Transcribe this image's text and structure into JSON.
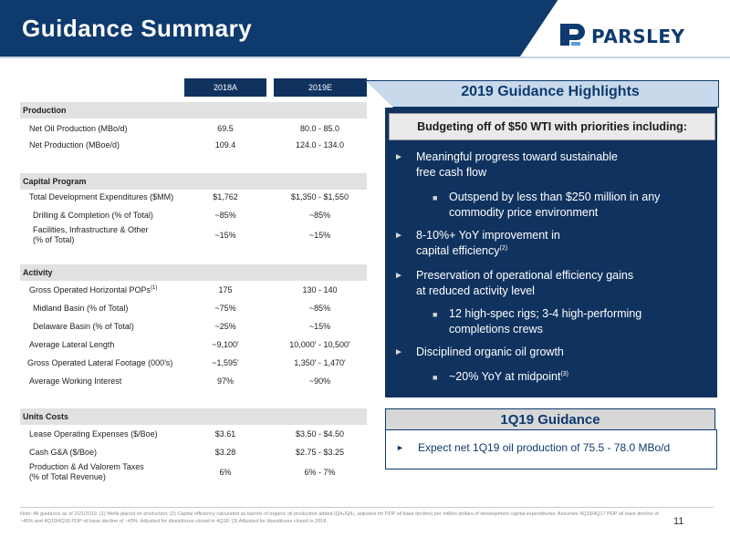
{
  "header": {
    "title": "Guidance Summary",
    "logo_text": "PARSLEY"
  },
  "table": {
    "columns": [
      "2018A",
      "2019E"
    ],
    "sections": {
      "production": "Production",
      "capital": "Capital Program",
      "activity": "Activity",
      "units": "Units Costs"
    },
    "rows": {
      "net_oil": {
        "label": "Net Oil Production (MBo/d)",
        "v1": "69.5",
        "v2": "80.0 - 85.0"
      },
      "net_prod": {
        "label": "Net Production (MBoe/d)",
        "v1": "109.4",
        "v2": "124.0 - 134.0"
      },
      "tde": {
        "label": "Total Development Expenditures ($MM)",
        "v1": "$1,762",
        "v2": "$1,350 - $1,550"
      },
      "drilling": {
        "label": "Drilling & Completion (% of Total)",
        "v1": "~85%",
        "v2": "~85%"
      },
      "facilities": {
        "label_line1": "Facilities, Infrastructure & Other",
        "label_line2": "(% of Total)",
        "v1": "~15%",
        "v2": "~15%"
      },
      "pops": {
        "label": "Gross Operated Horizontal POPs",
        "label_sup": "(1)",
        "v1": "175",
        "v2": "130 - 140"
      },
      "midland": {
        "label": "Midland Basin (% of Total)",
        "v1": "~75%",
        "v2": "~85%"
      },
      "delaware": {
        "label": "Delaware Basin (% of Total)",
        "v1": "~25%",
        "v2": "~15%"
      },
      "lateral": {
        "label": "Average Lateral Length",
        "v1": "~9,100'",
        "v2": "10,000' - 10,500'"
      },
      "footage": {
        "label": "Gross Operated Lateral Footage (000's)",
        "v1": "~1,595'",
        "v2": "1,350' - 1,470'"
      },
      "wi": {
        "label": "Average Working Interest",
        "v1": "97%",
        "v2": "~90%"
      },
      "loe": {
        "label": "Lease Operating Expenses ($/Boe)",
        "v1": "$3.61",
        "v2": "$3.50 - $4.50"
      },
      "ga": {
        "label": "Cash G&A ($/Boe)",
        "v1": "$3.28",
        "v2": "$2.75 - $3.25"
      },
      "taxes": {
        "label_line1": "Production & Ad Valorem Taxes",
        "label_line2": "(% of Total Revenue)",
        "v1": "6%",
        "v2": "6% - 7%"
      }
    }
  },
  "highlights": {
    "title": "2019 Guidance Highlights",
    "budget": "Budgeting off of $50 WTI with priorities including:",
    "b1_l1": "Meaningful progress toward sustainable",
    "b1_l2": "free cash flow",
    "s1_l1": "Outspend by less than $250 million in any",
    "s1_l2": "commodity price environment",
    "b2_l1": "8-10%+ YoY improvement in",
    "b2_l2": "capital efficiency",
    "b2_sup": "(2)",
    "b3_l1": "Preservation of operational efficiency gains",
    "b3_l2": "at reduced activity level",
    "s2_l1": "12 high-spec rigs; 3-4 high-performing",
    "s2_l2": "completions crews",
    "b4_l1": "Disciplined organic oil growth",
    "s3_l1": "~20% YoY at midpoint",
    "s3_sup": "(3)"
  },
  "q1": {
    "title": "1Q19 Guidance",
    "text": "Expect net 1Q19 oil production of 75.5 - 78.0 MBo/d"
  },
  "footer": {
    "note": "Note: All guidance as of 2/21/2019. (1) Wells placed on production; (2) Capital efficiency calculated as barrels of organic oil production added (Q4₄/Q4₃, adjusted for PDP oil base decline) per million dollars of development capital expenditures. Assumes 4Q18/4Q17 PDP oil base decline of ~45% and 4Q19/4Q18 PDP oil base decline of ~43%. Adjusted for divestitures closed in 4Q18; (3) Adjusted for divestitures closed in 2018.",
    "page": "11"
  },
  "colors": {
    "navy": "#0e3a6e",
    "light_blue": "#c7d9ea"
  }
}
